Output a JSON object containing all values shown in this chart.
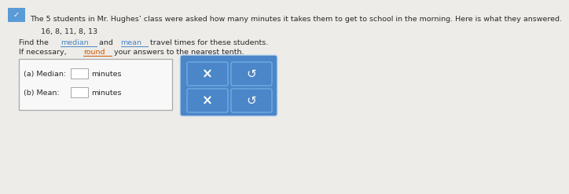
{
  "bg_color": "#eeece8",
  "top_bar_color": "#5b9bd5",
  "title_text": "The 5 students in Mr. Hughes’ class were asked how many minutes it takes them to get to school in the morning. Here is what they answered.",
  "data_line": "16, 8, 11, 8, 13",
  "median_label": "(a) Median:",
  "mean_label": "(b) Mean:",
  "minutes_label": "minutes",
  "box_border_color": "#aaaaaa",
  "box_fill_color": "#f8f8f8",
  "blue_panel_color": "#4a86c8",
  "blue_btn_color": "#4a86c8",
  "btn_border_color": "#6aaae0",
  "white_text": "#ffffff",
  "dark_text": "#2a2a2a",
  "median_color": "#4a86c8",
  "mean_color": "#4a86c8",
  "round_color": "#cc5500",
  "font_size": 7.0,
  "checkmark_color": "#5b9bd5"
}
